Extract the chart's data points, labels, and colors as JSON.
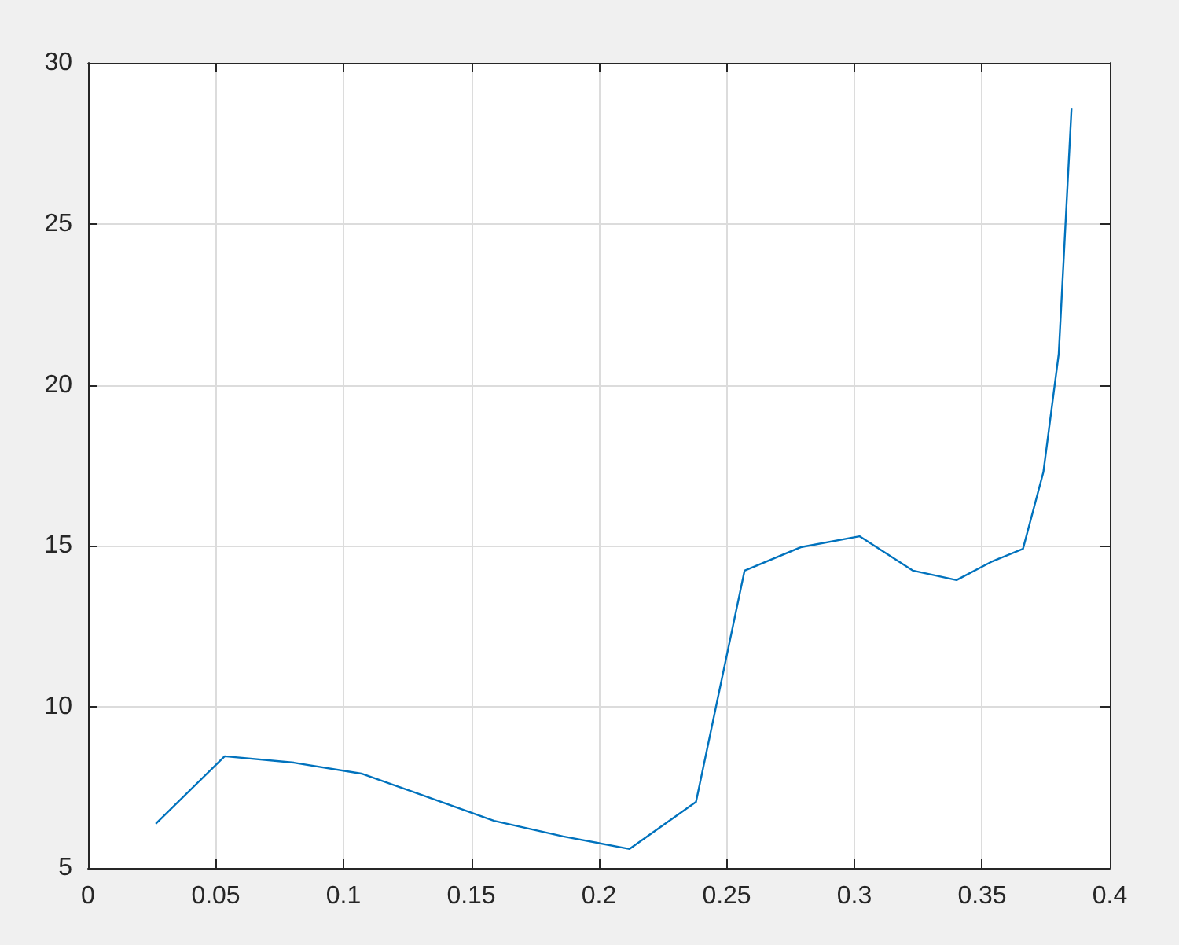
{
  "chart_data": {
    "type": "line",
    "x": [
      0.0265,
      0.0535,
      0.0806,
      0.107,
      0.133,
      0.159,
      0.186,
      0.212,
      0.238,
      0.257,
      0.279,
      0.302,
      0.323,
      0.34,
      0.354,
      0.366,
      0.374,
      0.38,
      0.385
    ],
    "series": [
      {
        "color": "#0072bd",
        "values": [
          6.37,
          8.47,
          8.27,
          7.93,
          7.2,
          6.46,
          5.98,
          5.59,
          7.05,
          14.23,
          14.96,
          15.3,
          14.23,
          13.94,
          14.52,
          14.91,
          17.3,
          20.97,
          28.58
        ]
      }
    ],
    "xlim": [
      0,
      0.4
    ],
    "xticks": [
      0,
      0.05,
      0.1,
      0.15,
      0.2,
      0.25,
      0.3,
      0.35,
      0.4
    ],
    "ylim": [
      5,
      30
    ],
    "yticks": [
      5,
      10,
      15,
      20,
      25,
      30
    ],
    "grid": true,
    "marker": "none",
    "line_style": "solid"
  }
}
